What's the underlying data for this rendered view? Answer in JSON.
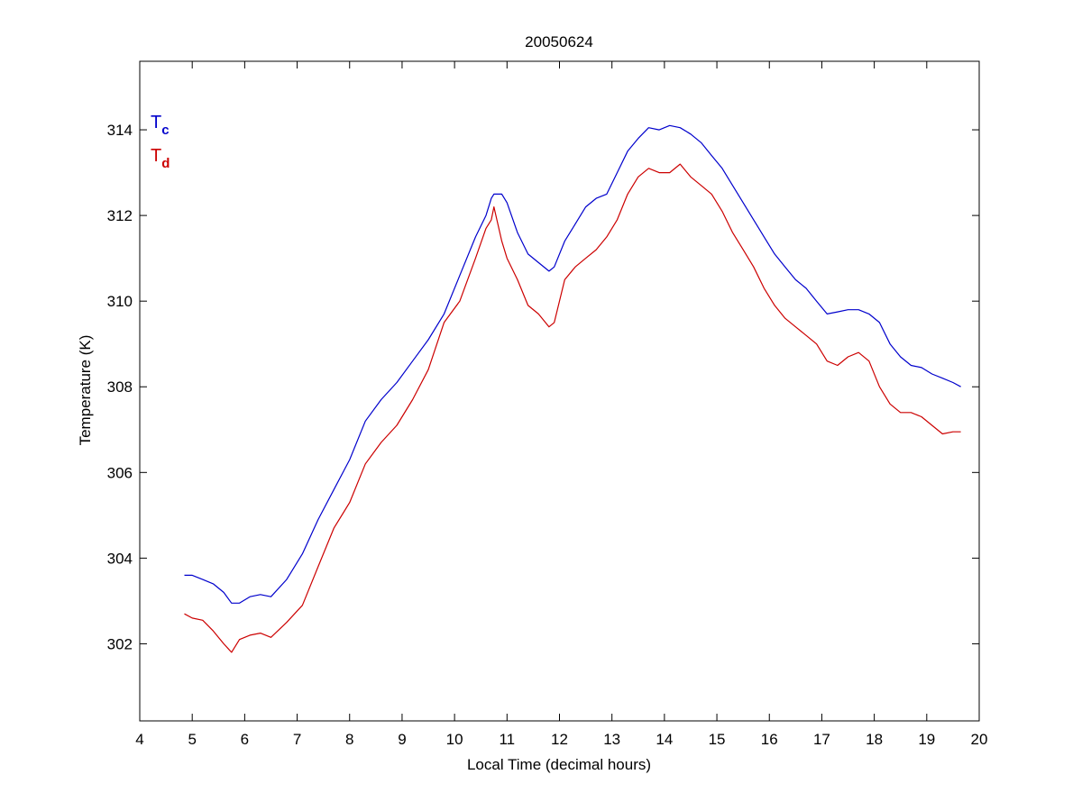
{
  "chart_data": {
    "type": "line",
    "title": "20050624",
    "xlabel": "Local Time (decimal hours)",
    "ylabel": "Temperature (K)",
    "xlim": [
      4,
      20
    ],
    "ylim": [
      300.2,
      315.6
    ],
    "xticks": [
      4,
      5,
      6,
      7,
      8,
      9,
      10,
      11,
      12,
      13,
      14,
      15,
      16,
      17,
      18,
      19,
      20
    ],
    "yticks": [
      302,
      304,
      306,
      308,
      310,
      312,
      314
    ],
    "grid": false,
    "legend_position": "top-left",
    "series": [
      {
        "name": "T",
        "subscript": "c",
        "color": "#0000cc",
        "x": [
          4.85,
          5.0,
          5.2,
          5.4,
          5.6,
          5.75,
          5.9,
          6.1,
          6.3,
          6.5,
          6.8,
          7.1,
          7.4,
          7.7,
          8.0,
          8.3,
          8.6,
          8.9,
          9.2,
          9.5,
          9.8,
          10.1,
          10.4,
          10.6,
          10.7,
          10.75,
          10.9,
          11.0,
          11.2,
          11.4,
          11.6,
          11.8,
          11.9,
          12.1,
          12.3,
          12.5,
          12.7,
          12.9,
          13.1,
          13.3,
          13.5,
          13.7,
          13.9,
          14.1,
          14.3,
          14.5,
          14.7,
          14.9,
          15.1,
          15.3,
          15.5,
          15.7,
          15.9,
          16.1,
          16.3,
          16.5,
          16.7,
          16.9,
          17.1,
          17.3,
          17.5,
          17.7,
          17.9,
          18.1,
          18.3,
          18.5,
          18.7,
          18.9,
          19.1,
          19.3,
          19.5,
          19.65
        ],
        "y": [
          303.6,
          303.6,
          303.5,
          303.4,
          303.2,
          302.95,
          302.95,
          303.1,
          303.15,
          303.1,
          303.5,
          304.1,
          304.9,
          305.6,
          306.3,
          307.2,
          307.7,
          308.1,
          308.6,
          309.1,
          309.7,
          310.6,
          311.5,
          312.0,
          312.4,
          312.5,
          312.5,
          312.3,
          311.6,
          311.1,
          310.9,
          310.7,
          310.8,
          311.4,
          311.8,
          312.2,
          312.4,
          312.5,
          313.0,
          313.5,
          313.8,
          314.05,
          314.0,
          314.1,
          314.05,
          313.9,
          313.7,
          313.4,
          313.1,
          312.7,
          312.3,
          311.9,
          311.5,
          311.1,
          310.8,
          310.5,
          310.3,
          310.0,
          309.7,
          309.75,
          309.8,
          309.8,
          309.7,
          309.5,
          309.0,
          308.7,
          308.5,
          308.45,
          308.3,
          308.2,
          308.1,
          308.0
        ]
      },
      {
        "name": "T",
        "subscript": "d",
        "color": "#cc0000",
        "x": [
          4.85,
          5.0,
          5.2,
          5.4,
          5.6,
          5.75,
          5.9,
          6.1,
          6.3,
          6.5,
          6.8,
          7.1,
          7.4,
          7.7,
          8.0,
          8.3,
          8.6,
          8.9,
          9.2,
          9.5,
          9.8,
          10.1,
          10.4,
          10.6,
          10.7,
          10.75,
          10.9,
          11.0,
          11.2,
          11.4,
          11.6,
          11.8,
          11.9,
          12.1,
          12.3,
          12.5,
          12.7,
          12.9,
          13.1,
          13.3,
          13.5,
          13.7,
          13.9,
          14.1,
          14.3,
          14.5,
          14.7,
          14.9,
          15.1,
          15.3,
          15.5,
          15.7,
          15.9,
          16.1,
          16.3,
          16.5,
          16.7,
          16.9,
          17.1,
          17.3,
          17.5,
          17.7,
          17.9,
          18.1,
          18.3,
          18.5,
          18.7,
          18.9,
          19.1,
          19.3,
          19.5,
          19.65
        ],
        "y": [
          302.7,
          302.6,
          302.55,
          302.3,
          302.0,
          301.8,
          302.1,
          302.2,
          302.25,
          302.15,
          302.5,
          302.9,
          303.8,
          304.7,
          305.3,
          306.2,
          306.7,
          307.1,
          307.7,
          308.4,
          309.5,
          310.0,
          311.0,
          311.7,
          311.9,
          312.2,
          311.4,
          311.0,
          310.5,
          309.9,
          309.7,
          309.4,
          309.5,
          310.5,
          310.8,
          311.0,
          311.2,
          311.5,
          311.9,
          312.5,
          312.9,
          313.1,
          313.0,
          313.0,
          313.2,
          312.9,
          312.7,
          312.5,
          312.1,
          311.6,
          311.2,
          310.8,
          310.3,
          309.9,
          309.6,
          309.4,
          309.2,
          309.0,
          308.6,
          308.5,
          308.7,
          308.8,
          308.6,
          308.0,
          307.6,
          307.4,
          307.4,
          307.3,
          307.1,
          306.9,
          306.95,
          306.95
        ]
      }
    ]
  }
}
